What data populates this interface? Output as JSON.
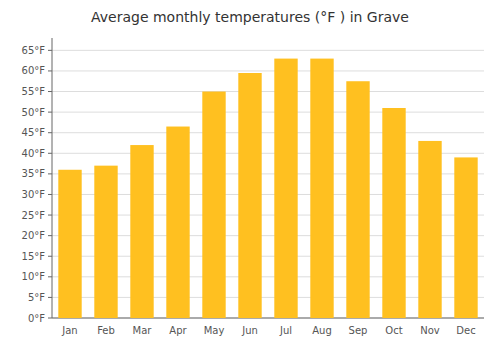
{
  "chart_data": {
    "type": "bar",
    "title": "Average monthly temperatures (°F ) in Grave",
    "categories": [
      "Jan",
      "Feb",
      "Mar",
      "Apr",
      "May",
      "Jun",
      "Jul",
      "Aug",
      "Sep",
      "Oct",
      "Nov",
      "Dec"
    ],
    "values": [
      36,
      37,
      42,
      46.5,
      55,
      59.5,
      63,
      63,
      57.5,
      51,
      43,
      39
    ],
    "color": "#FFC020",
    "ylim": [
      0,
      68
    ],
    "yticks": [
      {
        "value": 0,
        "label": "0°F"
      },
      {
        "value": 5,
        "label": "5°F"
      },
      {
        "value": 10,
        "label": "10°F"
      },
      {
        "value": 15,
        "label": "15°F"
      },
      {
        "value": 20,
        "label": "20°F"
      },
      {
        "value": 25,
        "label": "25°F"
      },
      {
        "value": 30,
        "label": "30°F"
      },
      {
        "value": 35,
        "label": "35°F"
      },
      {
        "value": 40,
        "label": "40°F"
      },
      {
        "value": 45,
        "label": "45°F"
      },
      {
        "value": 50,
        "label": "50°F"
      },
      {
        "value": 55,
        "label": "55°F"
      },
      {
        "value": 60,
        "label": "60°F"
      },
      {
        "value": 65,
        "label": "65°F"
      }
    ],
    "grid": true
  }
}
